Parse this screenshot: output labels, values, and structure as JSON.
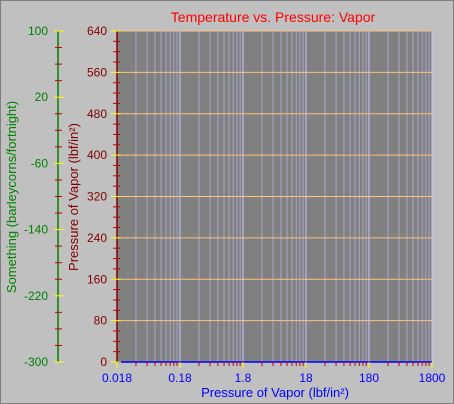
{
  "chart_data": {
    "type": "line",
    "title": "Temperature vs. Pressure: Vapor",
    "xlabel": "Pressure of Vapor (lbf/in²)",
    "ylabel": "Pressure of Vapor (lbf/in²)",
    "y2label": "Something (barleycorns/fortnight)",
    "x_scale": "log",
    "xlim": [
      0.018,
      1800
    ],
    "x_ticks": [
      0.018,
      0.18,
      1.8,
      18,
      180,
      1800
    ],
    "x_tick_labels": [
      "0.018",
      "0.18",
      "1.8",
      "18",
      "180",
      "1800"
    ],
    "ylim": [
      0,
      640
    ],
    "y_ticks": [
      0,
      80,
      160,
      240,
      320,
      400,
      480,
      560,
      640
    ],
    "y_tick_labels": [
      "0",
      "80",
      "160",
      "240",
      "320",
      "400",
      "480",
      "560",
      "640"
    ],
    "y2lim": [
      -300,
      100
    ],
    "y2_ticks": [
      -300,
      -220,
      -140,
      -60,
      20,
      100
    ],
    "y2_tick_labels": [
      "-300",
      "-220",
      "-140",
      "-60",
      "20",
      "100"
    ],
    "grid": true,
    "series": []
  },
  "colors": {
    "background": "#c0c0c0",
    "plot_area": "#808080",
    "title": "#ff0000",
    "x_axis": "#0000ff",
    "y_axis": "#800000",
    "y2_axis": "#008000",
    "major_tick": "#ffff00",
    "minor_tick": "#c00000",
    "vgrid_major": "#c8c8ff",
    "vgrid_minor": "#a7a7c8",
    "hgrid": "#ffc080"
  }
}
